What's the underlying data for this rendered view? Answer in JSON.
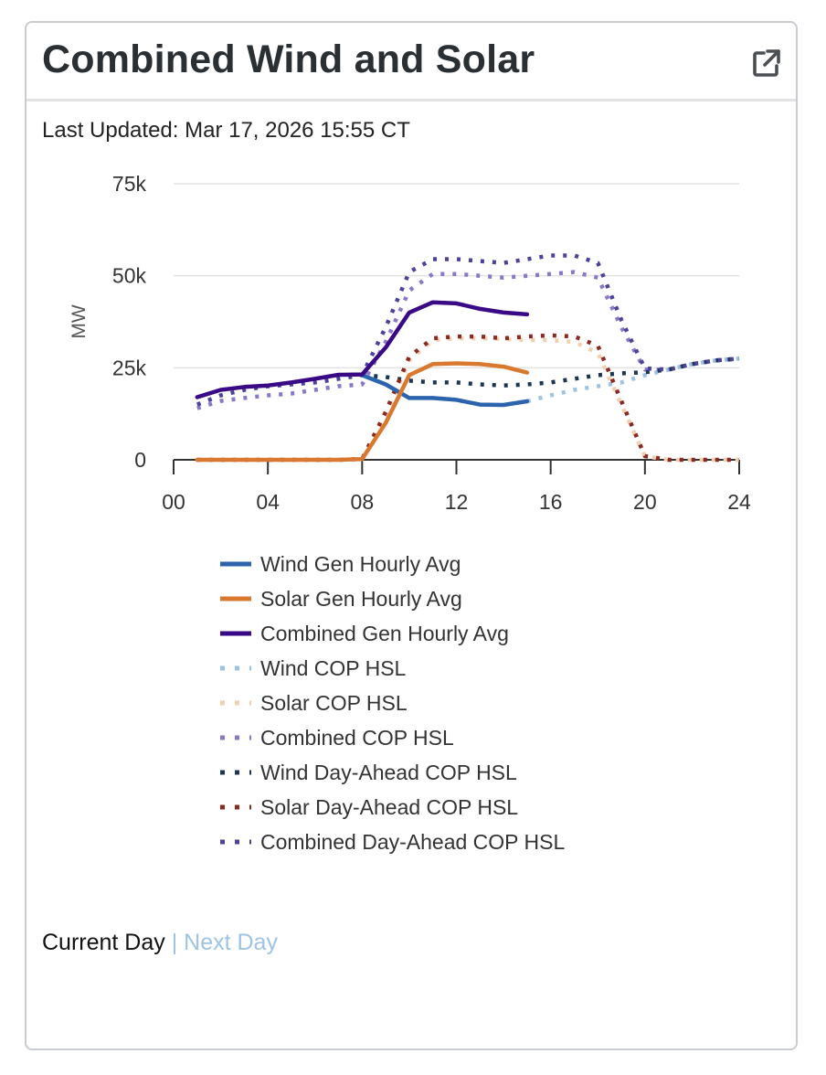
{
  "card": {
    "title": "Combined Wind and Solar",
    "popout_icon": "external-link-icon",
    "last_updated": "Last Updated: Mar 17, 2026 15:55 CT"
  },
  "nav": {
    "current_day": "Current Day",
    "separator": " | ",
    "next_day": "Next Day"
  },
  "chart_data": {
    "type": "line",
    "ylabel": "MW",
    "ylim": [
      0,
      75000
    ],
    "yticks": [
      0,
      25000,
      50000,
      75000
    ],
    "ytick_labels": [
      "0",
      "25k",
      "50k",
      "75k"
    ],
    "xlim": [
      0,
      24
    ],
    "xticks": [
      0,
      4,
      8,
      12,
      16,
      20,
      24
    ],
    "xtick_labels": [
      "00",
      "04",
      "08",
      "12",
      "16",
      "20",
      "24"
    ],
    "grid": "horizontal",
    "legend_position": "bottom",
    "series": [
      {
        "name": "Wind Gen Hourly Avg",
        "color": "#2b63ad",
        "style": "solid",
        "x": [
          8,
          9,
          10,
          11,
          12,
          13,
          14,
          15
        ],
        "y": [
          23000,
          20500,
          16800,
          16800,
          16300,
          15000,
          14900,
          15900
        ]
      },
      {
        "name": "Solar Gen Hourly Avg",
        "color": "#d97930",
        "style": "solid",
        "x": [
          1,
          2,
          3,
          4,
          5,
          6,
          7,
          8,
          9,
          10,
          11,
          12,
          13,
          14,
          15
        ],
        "y": [
          0,
          0,
          0,
          0,
          0,
          0,
          0,
          200,
          10000,
          23000,
          26000,
          26200,
          26000,
          25300,
          23700
        ]
      },
      {
        "name": "Combined Gen Hourly Avg",
        "color": "#3a0a86",
        "style": "solid",
        "x": [
          1,
          2,
          3,
          4,
          5,
          6,
          7,
          8,
          9,
          10,
          11,
          12,
          13,
          14,
          15
        ],
        "y": [
          17000,
          19000,
          19800,
          20200,
          21000,
          22000,
          23100,
          23200,
          30500,
          40000,
          42800,
          42500,
          41000,
          40000,
          39500
        ]
      },
      {
        "name": "Wind COP HSL",
        "color": "#9cc3e4",
        "style": "dotted",
        "x": [
          15,
          16,
          17,
          18,
          19,
          20,
          21,
          22,
          23,
          24
        ],
        "y": [
          15900,
          17500,
          19000,
          20000,
          21000,
          23000,
          24500,
          26000,
          27000,
          27500
        ]
      },
      {
        "name": "Solar COP HSL",
        "color": "#f2cfae",
        "style": "dotted",
        "x": [
          1,
          2,
          3,
          4,
          5,
          6,
          7,
          8,
          9,
          10,
          11,
          12,
          13,
          14,
          15,
          16,
          17,
          18,
          19,
          20,
          21,
          22,
          23,
          24
        ],
        "y": [
          0,
          0,
          0,
          0,
          0,
          0,
          0,
          200,
          12000,
          27000,
          32500,
          33000,
          33000,
          32800,
          32500,
          32500,
          32000,
          29000,
          15000,
          1000,
          0,
          0,
          0,
          0
        ]
      },
      {
        "name": "Combined COP HSL",
        "color": "#8a78c6",
        "style": "dotted",
        "x": [
          1,
          2,
          3,
          4,
          5,
          6,
          7,
          8,
          9,
          10,
          11,
          12,
          13,
          14,
          15,
          16,
          17,
          18,
          19,
          20,
          21,
          22,
          23,
          24
        ],
        "y": [
          14000,
          16000,
          16800,
          17500,
          18000,
          19000,
          20000,
          20500,
          32000,
          46000,
          50500,
          50500,
          50000,
          49500,
          50000,
          50500,
          51000,
          49500,
          36000,
          24500,
          24500,
          26000,
          27000,
          27500
        ]
      },
      {
        "name": "Wind Day-Ahead COP HSL",
        "color": "#1b3552",
        "style": "dotted",
        "x": [
          8,
          9,
          10,
          11,
          12,
          13,
          14,
          15,
          16,
          17,
          18,
          19,
          20,
          21,
          22,
          23,
          24
        ],
        "y": [
          23000,
          22500,
          21500,
          21000,
          21000,
          20500,
          20200,
          20500,
          21000,
          22000,
          23000,
          23500,
          23800,
          24500,
          26000,
          27000,
          27500
        ]
      },
      {
        "name": "Solar Day-Ahead COP HSL",
        "color": "#8b2a22",
        "style": "dotted",
        "x": [
          1,
          2,
          3,
          4,
          5,
          6,
          7,
          8,
          9,
          10,
          11,
          12,
          13,
          14,
          15,
          16,
          17,
          18,
          19,
          20,
          21,
          22,
          23,
          24
        ],
        "y": [
          0,
          0,
          0,
          0,
          0,
          0,
          0,
          200,
          13000,
          28000,
          33000,
          33500,
          33500,
          33000,
          33500,
          33800,
          33500,
          31000,
          16000,
          1000,
          0,
          0,
          0,
          0
        ]
      },
      {
        "name": "Combined Day-Ahead COP HSL",
        "color": "#4a4398",
        "style": "dotted",
        "x": [
          1,
          2,
          3,
          4,
          5,
          6,
          7,
          8,
          9,
          10,
          11,
          12,
          13,
          14,
          15,
          16,
          17,
          18,
          19,
          20,
          21,
          22,
          23,
          24
        ],
        "y": [
          15000,
          17500,
          19000,
          20000,
          20500,
          21000,
          22000,
          23000,
          36000,
          51000,
          54500,
          54500,
          54000,
          53500,
          54500,
          55500,
          55500,
          53500,
          38000,
          24800,
          24500,
          26000,
          27000,
          27500
        ]
      }
    ]
  }
}
